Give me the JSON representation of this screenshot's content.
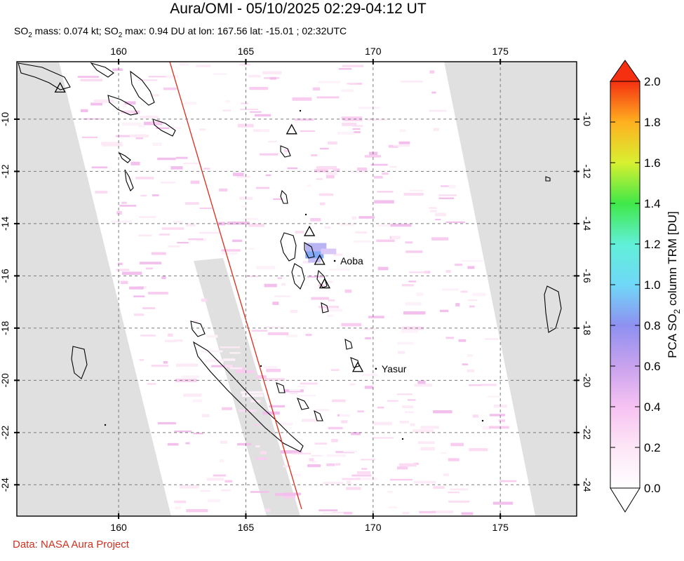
{
  "title": "Aura/OMI - 05/10/2025 02:29-04:12 UT",
  "subtitle": {
    "p1": "SO",
    "s1": "2",
    "p2": " mass: 0.074 kt; SO",
    "s2": "2",
    "p3": " max: 0.94 DU at lon: 167.56 lat: -15.01 ; 02:32UTC"
  },
  "credit": "Data: NASA Aura Project",
  "map": {
    "lon_range": [
      156,
      178
    ],
    "lat_range": [
      -25.2,
      -7.8
    ],
    "lon_ticks": [
      160,
      165,
      170,
      175
    ],
    "lat_ticks": [
      -10,
      -12,
      -14,
      -16,
      -18,
      -20,
      -22,
      -24
    ],
    "grid": "dashed",
    "volcanoes": [
      {
        "name": "",
        "lon": 157.7,
        "lat": -8.8
      },
      {
        "name": "",
        "lon": 166.8,
        "lat": -10.4
      },
      {
        "name": "",
        "lon": 167.5,
        "lat": -14.3
      },
      {
        "name": "",
        "lon": 167.9,
        "lat": -15.4
      },
      {
        "name": "Aoba",
        "lon": 167.83,
        "lat": -15.4,
        "label_only": true
      },
      {
        "name": "",
        "lon": 168.1,
        "lat": -16.3
      },
      {
        "name": "",
        "lon": 169.4,
        "lat": -19.5
      },
      {
        "name": "Yasur",
        "lon": 169.45,
        "lat": -19.53,
        "label_only": true
      }
    ],
    "so2_max": {
      "value_du": 0.94,
      "lon": 167.56,
      "lat": -15.01
    }
  },
  "colorbar": {
    "label_pre": "PCA SO",
    "label_sub": "2",
    "label_post": " column TRM [DU]",
    "min": 0.0,
    "max": 2.0,
    "ticks": [
      "0.0",
      "0.2",
      "0.4",
      "0.6",
      "0.8",
      "1.0",
      "1.2",
      "1.4",
      "1.6",
      "1.8",
      "2.0"
    ]
  }
}
